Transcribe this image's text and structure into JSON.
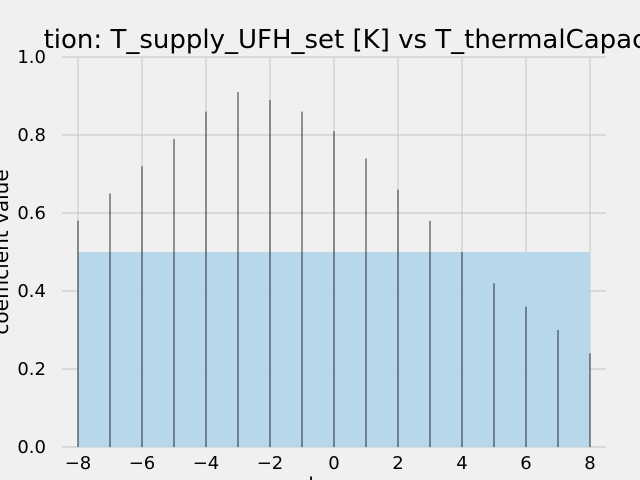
{
  "chart_data": {
    "type": "bar",
    "title": "tion: T_supply_UFH_set [K] vs T_thermalCapac",
    "xlabel": "l",
    "ylabel": "coefficient value",
    "xlim": [
      -8.5,
      8.5
    ],
    "ylim": [
      0,
      1
    ],
    "x_ticks": [
      "−8",
      "−6",
      "−4",
      "−2",
      "0",
      "2",
      "4",
      "6",
      "8"
    ],
    "y_ticks": [
      "0.0",
      "0.2",
      "0.4",
      "0.6",
      "0.8",
      "1.0"
    ],
    "x": [
      -8,
      -7,
      -6,
      -5,
      -4,
      -3,
      -2,
      -1,
      0,
      1,
      2,
      3,
      4,
      5,
      6,
      7,
      8
    ],
    "values": [
      0.58,
      0.65,
      0.72,
      0.79,
      0.86,
      0.91,
      0.89,
      0.86,
      0.81,
      0.74,
      0.66,
      0.58,
      0.5,
      0.42,
      0.36,
      0.3,
      0.24
    ],
    "confidence_band": {
      "x": [
        -8,
        8
      ],
      "upper": 0.5,
      "lower": 0
    },
    "grid": true,
    "colors": {
      "background": "#f0f0f0",
      "grid": "#cbcbcb",
      "band": "#b3d6ea",
      "line": "#000000"
    }
  }
}
